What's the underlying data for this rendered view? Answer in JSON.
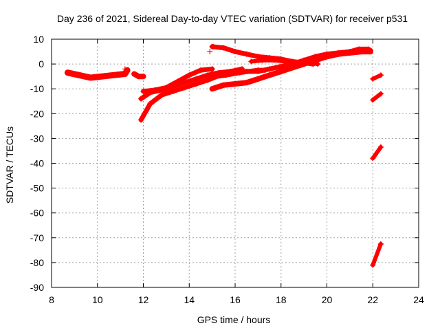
{
  "chart_data": {
    "type": "scatter",
    "title": "Day 236 of 2021, Sidereal Day-to-day VTEC variation (SDTVAR) for receiver p531",
    "xlabel": "GPS time / hours",
    "ylabel": "SDTVAR / TECUs",
    "xlim": [
      8,
      24
    ],
    "ylim": [
      -90,
      10
    ],
    "xticks": [
      8,
      10,
      12,
      14,
      16,
      18,
      20,
      22,
      24
    ],
    "yticks": [
      10,
      0,
      -10,
      -20,
      -30,
      -40,
      -50,
      -60,
      -70,
      -80,
      -90
    ],
    "grid": true,
    "marker": "+",
    "color": "#ff0000",
    "series": [
      {
        "x": [
          8.7,
          9.2,
          9.7,
          10.2,
          10.7,
          11.2,
          11.3
        ],
        "y": [
          -3.5,
          -4.5,
          -5.5,
          -5,
          -4.5,
          -4,
          -2.5
        ],
        "width": 4.5
      },
      {
        "x": [
          11.6,
          11.8,
          12.0
        ],
        "y": [
          -4,
          -5,
          -5
        ],
        "width": 4
      },
      {
        "x": [
          11.9,
          12.3,
          12.8,
          13.3,
          13.8,
          14.3,
          14.8,
          15.2,
          15.6,
          16.2,
          17.0,
          17.3
        ],
        "y": [
          -22.5,
          -16,
          -12.5,
          -11,
          -9.5,
          -8,
          -6.5,
          -5,
          -4.5,
          -3.5,
          -2.5,
          -2.5
        ],
        "width": 3.5
      },
      {
        "x": [
          11.9,
          12.3,
          12.8,
          13.3,
          13.8,
          14.3,
          14.8,
          15.3,
          15.8,
          16.3
        ],
        "y": [
          -14,
          -11.5,
          -10.5,
          -9,
          -7.5,
          -6,
          -4.5,
          -3.5,
          -3,
          -2
        ],
        "width": 3.5
      },
      {
        "x": [
          12.0,
          12.5,
          13.0,
          13.5,
          14.0,
          14.5,
          15.0
        ],
        "y": [
          -11,
          -10.5,
          -9.5,
          -7,
          -4.5,
          -2.5,
          -2
        ],
        "width": 3.5
      },
      {
        "x": [
          15.0,
          15.5,
          16.0,
          16.5,
          17.0,
          17.5,
          18.0,
          18.5,
          19.0,
          19.5,
          20.0,
          20.5,
          21.0,
          21.5,
          21.9
        ],
        "y": [
          -10,
          -8.5,
          -8,
          -7.5,
          -6,
          -4.5,
          -3,
          -1.5,
          0,
          1.5,
          3,
          4,
          4.5,
          5,
          5
        ],
        "width": 4
      },
      {
        "x": [
          15.0,
          15.5,
          16.0,
          16.5,
          17.0,
          17.5,
          18.0,
          18.5,
          19.0,
          19.5,
          20.0,
          20.5,
          21.0,
          21.5,
          21.9
        ],
        "y": [
          -4,
          -3.5,
          -3,
          -3,
          -3,
          -2,
          -1,
          0,
          1.5,
          3,
          4,
          4.5,
          5,
          5.5,
          5.5
        ],
        "width": 3.5
      },
      {
        "x": [
          15.0,
          15.5,
          16.0,
          16.5,
          17.0,
          17.5,
          18.0,
          18.5,
          19.0,
          19.4
        ],
        "y": [
          7,
          6.5,
          5,
          4,
          3,
          2.5,
          2,
          1,
          0.5,
          0
        ],
        "width": 3.5
      },
      {
        "x": [
          16.7,
          17.2,
          17.7,
          18.2,
          18.7,
          19.2,
          19.6
        ],
        "y": [
          1,
          1.5,
          1.5,
          1,
          0.5,
          0.5,
          0
        ],
        "width": 3
      },
      {
        "x": [
          21.0,
          21.4,
          21.8
        ],
        "y": [
          5,
          6,
          6
        ],
        "width": 3.5
      },
      {
        "x": [
          22.0,
          22.35
        ],
        "y": [
          -6,
          -4.5
        ],
        "width": 3
      },
      {
        "x": [
          22.0,
          22.35
        ],
        "y": [
          -14.5,
          -12
        ],
        "width": 3
      },
      {
        "x": [
          22.0,
          22.35
        ],
        "y": [
          -38,
          -33.5
        ],
        "width": 3
      },
      {
        "x": [
          22.0,
          22.35
        ],
        "y": [
          -81,
          -72.5
        ],
        "width": 3
      }
    ],
    "points": [
      {
        "x": 14.9,
        "y": 5
      },
      {
        "x": 15.05,
        "y": 7
      },
      {
        "x": 11.2,
        "y": -2
      }
    ]
  }
}
